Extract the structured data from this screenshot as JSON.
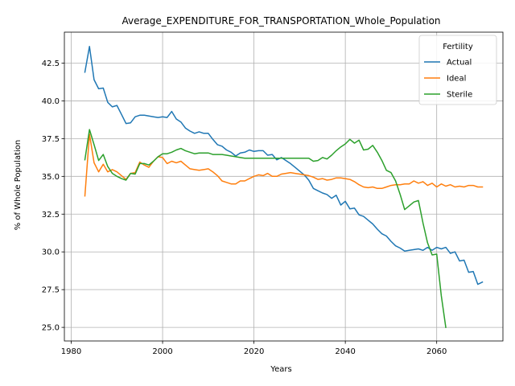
{
  "chart_data": {
    "type": "line",
    "title": "Average_EXPENDITURE_FOR_TRANSPORTATION_Whole_Population",
    "xlabel": "Years",
    "ylabel": "% of Whole Population",
    "xlim": [
      1978.5,
      2074.5
    ],
    "ylim": [
      24.1,
      44.55
    ],
    "xticks": [
      1980,
      2000,
      2020,
      2040,
      2060
    ],
    "yticks": [
      25.0,
      27.5,
      30.0,
      32.5,
      35.0,
      37.5,
      40.0,
      42.5
    ],
    "grid": true,
    "legend": {
      "title": "Fertility",
      "position": "top-right"
    },
    "series": [
      {
        "name": "Actual",
        "color": "#1f77b4",
        "x": [
          1983,
          1984,
          1985,
          1986,
          1987,
          1988,
          1989,
          1990,
          1991,
          1992,
          1993,
          1994,
          1995,
          1996,
          1997,
          1998,
          1999,
          2000,
          2001,
          2002,
          2003,
          2004,
          2005,
          2006,
          2007,
          2008,
          2009,
          2010,
          2011,
          2012,
          2013,
          2014,
          2015,
          2016,
          2017,
          2018,
          2019,
          2020,
          2021,
          2022,
          2023,
          2024,
          2025,
          2026,
          2027,
          2028,
          2029,
          2030,
          2031,
          2032,
          2033,
          2034,
          2035,
          2036,
          2037,
          2038,
          2039,
          2040,
          2041,
          2042,
          2043,
          2044,
          2045,
          2046,
          2047,
          2048,
          2049,
          2050,
          2051,
          2052,
          2053,
          2054,
          2055,
          2056,
          2057,
          2058,
          2059,
          2060,
          2061,
          2062,
          2063,
          2064,
          2065,
          2066,
          2067,
          2068,
          2069,
          2070
        ],
        "y": [
          41.9,
          43.6,
          41.4,
          40.8,
          40.85,
          39.9,
          39.6,
          39.7,
          39.1,
          38.5,
          38.55,
          38.95,
          39.05,
          39.05,
          39.0,
          38.95,
          38.9,
          38.95,
          38.9,
          39.3,
          38.8,
          38.6,
          38.2,
          38.0,
          37.85,
          37.95,
          37.85,
          37.85,
          37.45,
          37.1,
          37.0,
          36.75,
          36.6,
          36.35,
          36.55,
          36.6,
          36.75,
          36.65,
          36.7,
          36.7,
          36.4,
          36.45,
          36.1,
          36.25,
          36.05,
          35.85,
          35.6,
          35.35,
          35.1,
          34.75,
          34.2,
          34.05,
          33.9,
          33.8,
          33.55,
          33.75,
          33.1,
          33.35,
          32.85,
          32.9,
          32.45,
          32.35,
          32.1,
          31.85,
          31.5,
          31.2,
          31.05,
          30.7,
          30.4,
          30.25,
          30.05,
          30.1,
          30.15,
          30.2,
          30.1,
          30.3,
          30.1,
          30.3,
          30.2,
          30.3,
          29.9,
          30.0,
          29.4,
          29.45,
          28.65,
          28.7,
          27.85,
          28.0
        ]
      },
      {
        "name": "Ideal",
        "color": "#ff7f0e",
        "x": [
          1983,
          1984,
          1985,
          1986,
          1987,
          1988,
          1989,
          1990,
          1991,
          1992,
          1993,
          1994,
          1995,
          1996,
          1997,
          1998,
          1999,
          2000,
          2001,
          2002,
          2003,
          2004,
          2005,
          2006,
          2007,
          2008,
          2009,
          2010,
          2011,
          2012,
          2013,
          2014,
          2015,
          2016,
          2017,
          2018,
          2019,
          2020,
          2021,
          2022,
          2023,
          2024,
          2025,
          2026,
          2027,
          2028,
          2029,
          2030,
          2031,
          2032,
          2033,
          2034,
          2035,
          2036,
          2037,
          2038,
          2039,
          2040,
          2041,
          2042,
          2043,
          2044,
          2045,
          2046,
          2047,
          2048,
          2049,
          2050,
          2051,
          2052,
          2053,
          2054,
          2055,
          2056,
          2057,
          2058,
          2059,
          2060,
          2061,
          2062,
          2063,
          2064,
          2065,
          2066,
          2067,
          2068,
          2069,
          2070
        ],
        "y": [
          33.7,
          37.8,
          35.9,
          35.3,
          35.8,
          35.3,
          35.45,
          35.3,
          35.05,
          34.8,
          35.2,
          35.25,
          35.95,
          35.75,
          35.6,
          36.0,
          36.3,
          36.25,
          35.85,
          36.0,
          35.9,
          36.0,
          35.75,
          35.5,
          35.45,
          35.4,
          35.45,
          35.5,
          35.3,
          35.05,
          34.7,
          34.6,
          34.5,
          34.5,
          34.7,
          34.7,
          34.85,
          35.0,
          35.1,
          35.05,
          35.2,
          35.0,
          35.0,
          35.15,
          35.2,
          35.25,
          35.2,
          35.15,
          35.1,
          35.05,
          34.95,
          34.8,
          34.85,
          34.75,
          34.8,
          34.9,
          34.9,
          34.85,
          34.8,
          34.65,
          34.45,
          34.3,
          34.25,
          34.3,
          34.2,
          34.2,
          34.3,
          34.4,
          34.45,
          34.45,
          34.5,
          34.5,
          34.7,
          34.55,
          34.65,
          34.4,
          34.55,
          34.3,
          34.5,
          34.35,
          34.45,
          34.3,
          34.35,
          34.3,
          34.4,
          34.4,
          34.3,
          34.3
        ]
      },
      {
        "name": "Sterile",
        "color": "#2ca02c",
        "x": [
          1983,
          1984,
          1985,
          1986,
          1987,
          1988,
          1989,
          1990,
          1991,
          1992,
          1993,
          1994,
          1995,
          1996,
          1997,
          1998,
          1999,
          2000,
          2001,
          2002,
          2003,
          2004,
          2005,
          2006,
          2007,
          2008,
          2009,
          2010,
          2011,
          2012,
          2013,
          2014,
          2015,
          2016,
          2017,
          2018,
          2019,
          2020,
          2021,
          2022,
          2023,
          2024,
          2025,
          2026,
          2027,
          2028,
          2029,
          2030,
          2031,
          2032,
          2033,
          2034,
          2035,
          2036,
          2037,
          2038,
          2039,
          2040,
          2041,
          2042,
          2043,
          2044,
          2045,
          2046,
          2047,
          2048,
          2049,
          2050,
          2051,
          2052,
          2053,
          2054,
          2055,
          2056,
          2057,
          2058,
          2059,
          2060,
          2061,
          2062
        ],
        "y": [
          36.1,
          38.1,
          37.1,
          36.05,
          36.45,
          35.65,
          35.2,
          35.0,
          34.85,
          34.75,
          35.2,
          35.15,
          35.85,
          35.85,
          35.75,
          36.0,
          36.3,
          36.5,
          36.5,
          36.6,
          36.75,
          36.85,
          36.7,
          36.6,
          36.5,
          36.55,
          36.55,
          36.55,
          36.45,
          36.45,
          36.45,
          36.4,
          36.35,
          36.3,
          36.25,
          36.2,
          36.2,
          36.2,
          36.2,
          36.2,
          36.2,
          36.2,
          36.2,
          36.2,
          36.2,
          36.2,
          36.2,
          36.2,
          36.2,
          36.2,
          36.0,
          36.05,
          36.25,
          36.15,
          36.4,
          36.7,
          36.95,
          37.15,
          37.45,
          37.2,
          37.4,
          36.75,
          36.8,
          37.05,
          36.6,
          36.05,
          35.4,
          35.25,
          34.7,
          33.8,
          32.8,
          33.05,
          33.3,
          33.4,
          31.9,
          30.6,
          29.8,
          29.85,
          27.1,
          25.0
        ]
      }
    ]
  }
}
